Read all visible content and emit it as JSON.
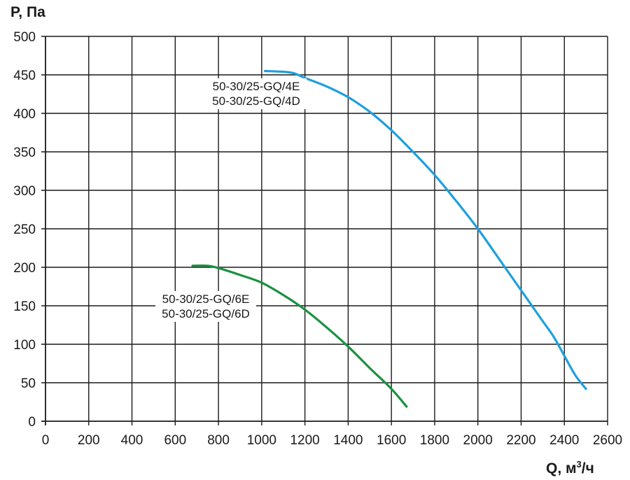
{
  "chart_data": {
    "type": "line",
    "ylabel": "P, Па",
    "xlabel_main": "Q, м",
    "xlabel_sup": "3",
    "xlabel_tail": "/ч",
    "xlim": [
      0,
      2600
    ],
    "ylim": [
      0,
      500
    ],
    "x_ticks": [
      0,
      200,
      400,
      600,
      800,
      1000,
      1200,
      1400,
      1600,
      1800,
      2000,
      2200,
      2400,
      2600
    ],
    "y_ticks": [
      0,
      50,
      100,
      150,
      200,
      250,
      300,
      350,
      400,
      450,
      500
    ],
    "grid": true,
    "series": [
      {
        "labels": [
          "50-30/25-GQ/4E",
          "50-30/25-GQ/4D"
        ],
        "color": "#1ea0dc",
        "x": [
          1015,
          1100,
          1150,
          1200,
          1300,
          1400,
          1500,
          1600,
          1700,
          1800,
          1900,
          2000,
          2100,
          2200,
          2300,
          2350,
          2400,
          2450,
          2500
        ],
        "y": [
          455,
          454,
          452,
          446,
          435,
          421,
          402,
          378,
          350,
          320,
          286,
          250,
          210,
          170,
          130,
          110,
          85,
          60,
          42
        ]
      },
      {
        "labels": [
          "50-30/25-GQ/6E",
          "50-30/25-GQ/6D"
        ],
        "color": "#1a9140",
        "x": [
          680,
          750,
          800,
          900,
          1000,
          1100,
          1200,
          1300,
          1400,
          1500,
          1600,
          1670
        ],
        "y": [
          202,
          202,
          199,
          190,
          180,
          164,
          145,
          122,
          97,
          69,
          42,
          19
        ]
      }
    ]
  }
}
